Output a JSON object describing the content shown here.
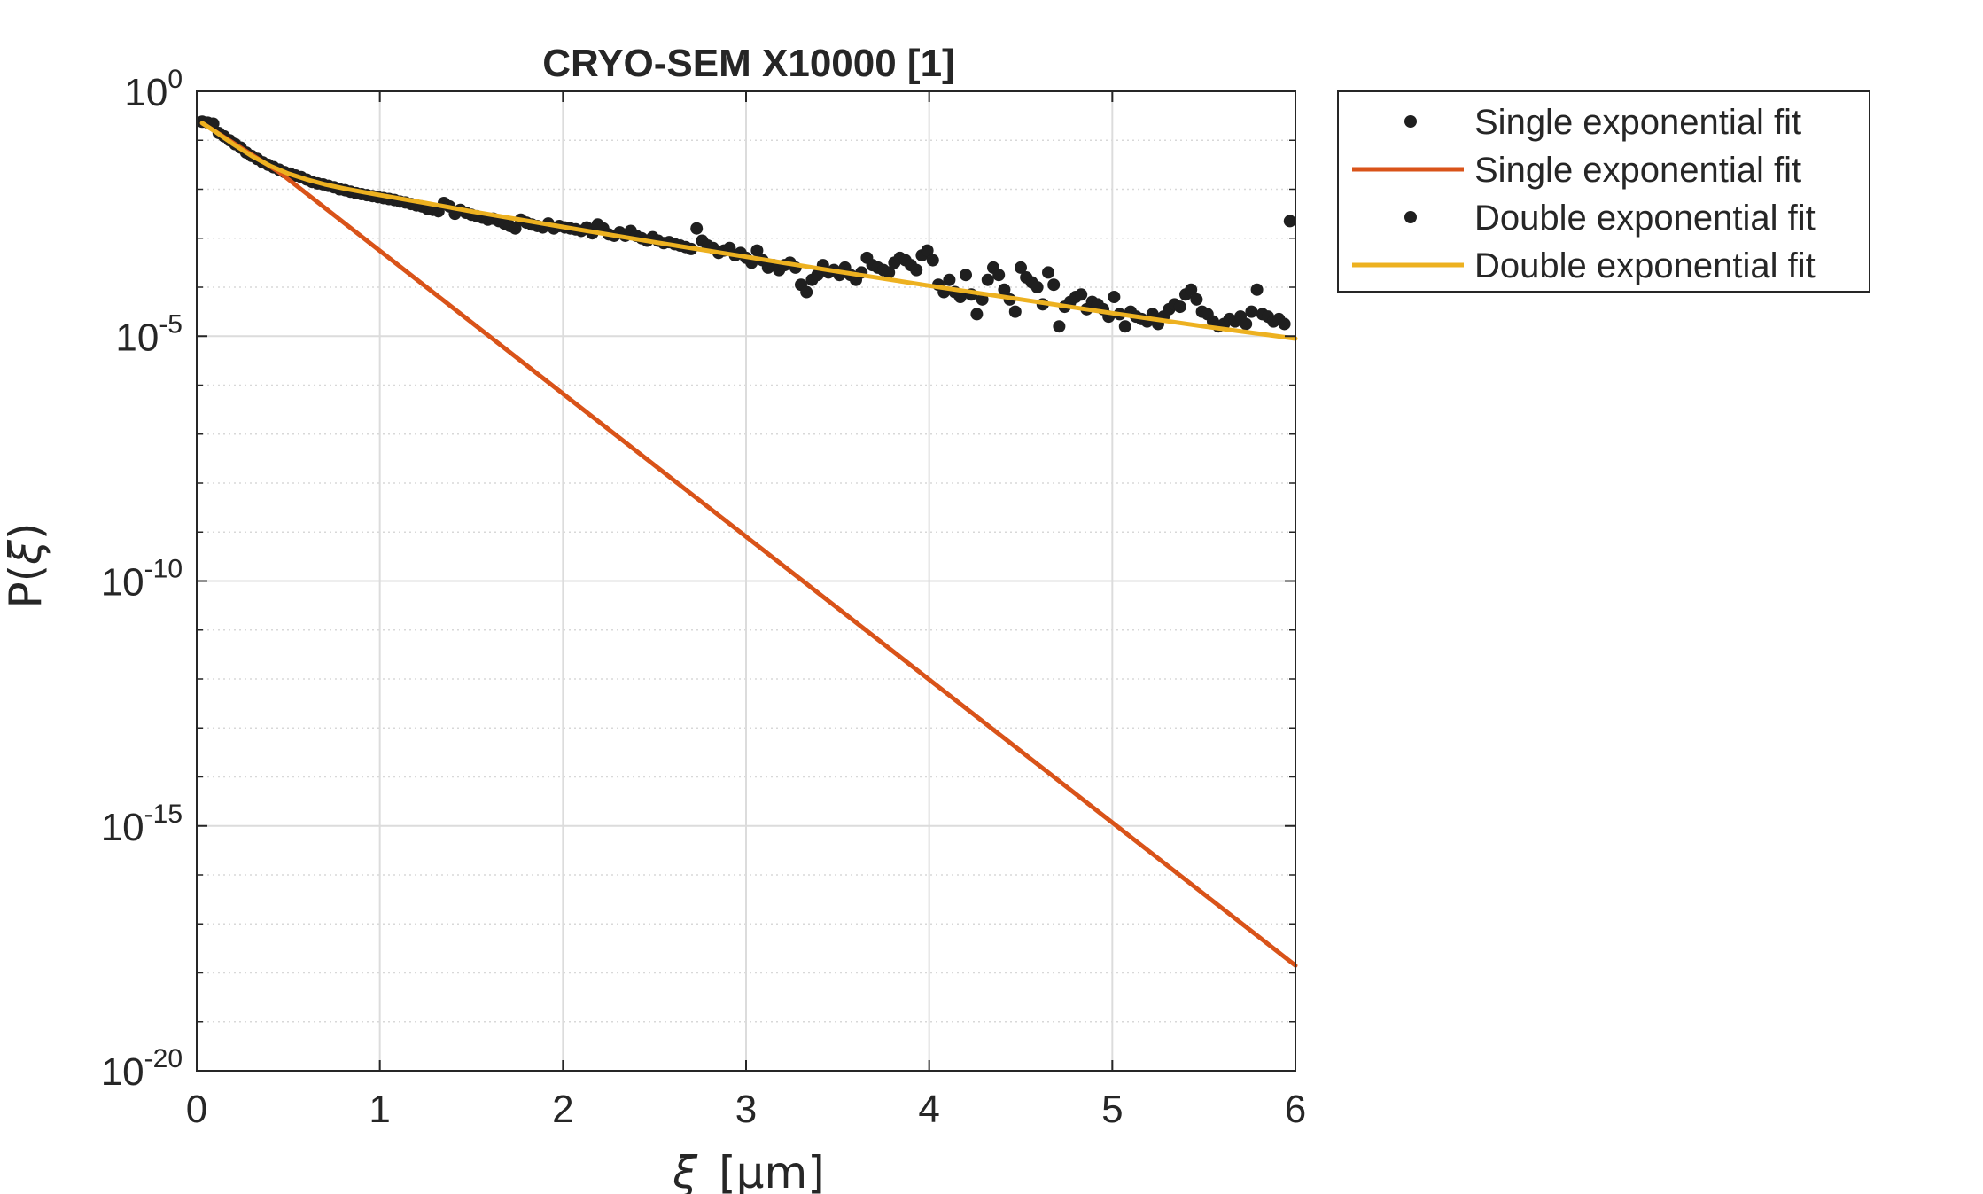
{
  "chart_data": {
    "type": "scatter",
    "title": "CRYO-SEM X10000 [1]",
    "xlabel_symbol": "ξ",
    "xlabel_unit": "[μm]",
    "ylabel_main": "P(",
    "ylabel_symbol": "ξ",
    "ylabel_close": ")",
    "xlim": [
      0,
      6
    ],
    "ylim_log10": [
      -20,
      0
    ],
    "yscale": "log",
    "grid": true,
    "legend_position": "outside-top-right",
    "x_ticks": [
      {
        "value": 0,
        "label": "0"
      },
      {
        "value": 1,
        "label": "1"
      },
      {
        "value": 2,
        "label": "2"
      },
      {
        "value": 3,
        "label": "3"
      },
      {
        "value": 4,
        "label": "4"
      },
      {
        "value": 5,
        "label": "5"
      },
      {
        "value": 6,
        "label": "6"
      }
    ],
    "y_ticks": [
      {
        "exp": 0,
        "base": "10",
        "power": "0"
      },
      {
        "exp": -5,
        "base": "10",
        "power": "-5"
      },
      {
        "exp": -10,
        "base": "10",
        "power": "-10"
      },
      {
        "exp": -15,
        "base": "10",
        "power": "-15"
      },
      {
        "exp": -20,
        "base": "10",
        "power": "-20"
      }
    ],
    "legend": [
      {
        "label": "Single exponential fit",
        "kind": "marker",
        "color": "#1f1f1f"
      },
      {
        "label": "Single exponential fit",
        "kind": "line",
        "color": "#d95319"
      },
      {
        "label": "Double exponential fit",
        "kind": "marker",
        "color": "#1f1f1f"
      },
      {
        "label": "Double exponential fit",
        "kind": "line",
        "color": "#edb120"
      }
    ],
    "series": [
      {
        "kind": "scatter",
        "color": "#1f1f1f",
        "points": [
          [
            0.03,
            -0.62
          ],
          [
            0.06,
            -0.64
          ],
          [
            0.09,
            -0.66
          ],
          [
            0.12,
            -0.85
          ],
          [
            0.15,
            -0.92
          ],
          [
            0.18,
            -1.0
          ],
          [
            0.21,
            -1.08
          ],
          [
            0.24,
            -1.15
          ],
          [
            0.27,
            -1.25
          ],
          [
            0.3,
            -1.32
          ],
          [
            0.33,
            -1.38
          ],
          [
            0.36,
            -1.45
          ],
          [
            0.39,
            -1.5
          ],
          [
            0.42,
            -1.55
          ],
          [
            0.45,
            -1.6
          ],
          [
            0.48,
            -1.65
          ],
          [
            0.51,
            -1.68
          ],
          [
            0.54,
            -1.72
          ],
          [
            0.57,
            -1.75
          ],
          [
            0.6,
            -1.8
          ],
          [
            0.63,
            -1.85
          ],
          [
            0.66,
            -1.88
          ],
          [
            0.69,
            -1.9
          ],
          [
            0.72,
            -1.93
          ],
          [
            0.75,
            -1.96
          ],
          [
            0.78,
            -2.0
          ],
          [
            0.81,
            -2.02
          ],
          [
            0.84,
            -2.05
          ],
          [
            0.87,
            -2.08
          ],
          [
            0.9,
            -2.1
          ],
          [
            0.93,
            -2.12
          ],
          [
            0.96,
            -2.14
          ],
          [
            0.99,
            -2.16
          ],
          [
            1.02,
            -2.18
          ],
          [
            1.05,
            -2.2
          ],
          [
            1.08,
            -2.22
          ],
          [
            1.11,
            -2.25
          ],
          [
            1.14,
            -2.27
          ],
          [
            1.17,
            -2.3
          ],
          [
            1.2,
            -2.33
          ],
          [
            1.23,
            -2.35
          ],
          [
            1.26,
            -2.4
          ],
          [
            1.29,
            -2.42
          ],
          [
            1.32,
            -2.45
          ],
          [
            1.35,
            -2.28
          ],
          [
            1.38,
            -2.35
          ],
          [
            1.41,
            -2.5
          ],
          [
            1.44,
            -2.42
          ],
          [
            1.47,
            -2.48
          ],
          [
            1.5,
            -2.52
          ],
          [
            1.53,
            -2.55
          ],
          [
            1.56,
            -2.58
          ],
          [
            1.59,
            -2.62
          ],
          [
            1.62,
            -2.6
          ],
          [
            1.65,
            -2.65
          ],
          [
            1.68,
            -2.7
          ],
          [
            1.71,
            -2.75
          ],
          [
            1.74,
            -2.8
          ],
          [
            1.77,
            -2.62
          ],
          [
            1.8,
            -2.68
          ],
          [
            1.83,
            -2.72
          ],
          [
            1.86,
            -2.75
          ],
          [
            1.89,
            -2.78
          ],
          [
            1.92,
            -2.7
          ],
          [
            1.95,
            -2.8
          ],
          [
            1.98,
            -2.75
          ],
          [
            2.01,
            -2.78
          ],
          [
            2.04,
            -2.8
          ],
          [
            2.07,
            -2.82
          ],
          [
            2.1,
            -2.85
          ],
          [
            2.13,
            -2.78
          ],
          [
            2.16,
            -2.9
          ],
          [
            2.19,
            -2.72
          ],
          [
            2.22,
            -2.8
          ],
          [
            2.25,
            -2.92
          ],
          [
            2.28,
            -2.95
          ],
          [
            2.31,
            -2.88
          ],
          [
            2.34,
            -2.95
          ],
          [
            2.37,
            -2.85
          ],
          [
            2.4,
            -2.95
          ],
          [
            2.43,
            -3.0
          ],
          [
            2.46,
            -3.05
          ],
          [
            2.49,
            -2.98
          ],
          [
            2.52,
            -3.05
          ],
          [
            2.55,
            -3.1
          ],
          [
            2.58,
            -3.08
          ],
          [
            2.61,
            -3.12
          ],
          [
            2.64,
            -3.15
          ],
          [
            2.67,
            -3.18
          ],
          [
            2.7,
            -3.22
          ],
          [
            2.73,
            -2.8
          ],
          [
            2.76,
            -3.05
          ],
          [
            2.79,
            -3.15
          ],
          [
            2.82,
            -3.2
          ],
          [
            2.85,
            -3.3
          ],
          [
            2.88,
            -3.25
          ],
          [
            2.91,
            -3.2
          ],
          [
            2.94,
            -3.35
          ],
          [
            2.97,
            -3.3
          ],
          [
            3.0,
            -3.4
          ],
          [
            3.03,
            -3.5
          ],
          [
            3.06,
            -3.25
          ],
          [
            3.09,
            -3.45
          ],
          [
            3.12,
            -3.6
          ],
          [
            3.15,
            -3.55
          ],
          [
            3.18,
            -3.65
          ],
          [
            3.21,
            -3.55
          ],
          [
            3.24,
            -3.5
          ],
          [
            3.27,
            -3.6
          ],
          [
            3.3,
            -3.95
          ],
          [
            3.33,
            -4.1
          ],
          [
            3.36,
            -3.85
          ],
          [
            3.39,
            -3.75
          ],
          [
            3.42,
            -3.55
          ],
          [
            3.45,
            -3.7
          ],
          [
            3.48,
            -3.65
          ],
          [
            3.51,
            -3.75
          ],
          [
            3.54,
            -3.6
          ],
          [
            3.57,
            -3.75
          ],
          [
            3.6,
            -3.85
          ],
          [
            3.63,
            -3.7
          ],
          [
            3.66,
            -3.4
          ],
          [
            3.69,
            -3.55
          ],
          [
            3.72,
            -3.6
          ],
          [
            3.75,
            -3.65
          ],
          [
            3.78,
            -3.7
          ],
          [
            3.81,
            -3.5
          ],
          [
            3.84,
            -3.4
          ],
          [
            3.87,
            -3.45
          ],
          [
            3.9,
            -3.55
          ],
          [
            3.93,
            -3.65
          ],
          [
            3.96,
            -3.35
          ],
          [
            3.99,
            -3.25
          ],
          [
            4.02,
            -3.45
          ],
          [
            4.05,
            -3.95
          ],
          [
            4.08,
            -4.1
          ],
          [
            4.11,
            -3.85
          ],
          [
            4.14,
            -4.1
          ],
          [
            4.17,
            -4.2
          ],
          [
            4.2,
            -3.75
          ],
          [
            4.23,
            -4.15
          ],
          [
            4.26,
            -4.55
          ],
          [
            4.29,
            -4.25
          ],
          [
            4.32,
            -3.85
          ],
          [
            4.35,
            -3.6
          ],
          [
            4.38,
            -3.75
          ],
          [
            4.41,
            -4.05
          ],
          [
            4.44,
            -4.25
          ],
          [
            4.47,
            -4.5
          ],
          [
            4.5,
            -3.6
          ],
          [
            4.53,
            -3.8
          ],
          [
            4.56,
            -3.9
          ],
          [
            4.59,
            -4.0
          ],
          [
            4.62,
            -4.35
          ],
          [
            4.65,
            -3.7
          ],
          [
            4.68,
            -3.95
          ],
          [
            4.71,
            -4.8
          ],
          [
            4.74,
            -4.4
          ],
          [
            4.77,
            -4.3
          ],
          [
            4.8,
            -4.2
          ],
          [
            4.83,
            -4.15
          ],
          [
            4.86,
            -4.45
          ],
          [
            4.89,
            -4.3
          ],
          [
            4.92,
            -4.35
          ],
          [
            4.95,
            -4.45
          ],
          [
            4.98,
            -4.6
          ],
          [
            5.01,
            -4.2
          ],
          [
            5.04,
            -4.55
          ],
          [
            5.07,
            -4.8
          ],
          [
            5.1,
            -4.5
          ],
          [
            5.13,
            -4.6
          ],
          [
            5.16,
            -4.65
          ],
          [
            5.19,
            -4.7
          ],
          [
            5.22,
            -4.55
          ],
          [
            5.25,
            -4.75
          ],
          [
            5.28,
            -4.6
          ],
          [
            5.31,
            -4.45
          ],
          [
            5.34,
            -4.35
          ],
          [
            5.37,
            -4.4
          ],
          [
            5.4,
            -4.15
          ],
          [
            5.43,
            -4.05
          ],
          [
            5.46,
            -4.25
          ],
          [
            5.49,
            -4.5
          ],
          [
            5.52,
            -4.55
          ],
          [
            5.55,
            -4.7
          ],
          [
            5.58,
            -4.8
          ],
          [
            5.61,
            -4.75
          ],
          [
            5.64,
            -4.65
          ],
          [
            5.67,
            -4.7
          ],
          [
            5.7,
            -4.6
          ],
          [
            5.73,
            -4.75
          ],
          [
            5.76,
            -4.5
          ],
          [
            5.79,
            -4.05
          ],
          [
            5.82,
            -4.55
          ],
          [
            5.85,
            -4.6
          ],
          [
            5.88,
            -4.7
          ],
          [
            5.91,
            -4.65
          ],
          [
            5.94,
            -4.75
          ],
          [
            5.97,
            -2.65
          ]
        ]
      },
      {
        "kind": "line",
        "color": "#d95319",
        "points": [
          [
            0.03,
            -0.65
          ],
          [
            0.45,
            -1.65
          ],
          [
            6.0,
            -17.85
          ]
        ]
      },
      {
        "kind": "line",
        "color": "#edb120",
        "points": [
          [
            0.03,
            -0.65
          ],
          [
            0.1,
            -0.82
          ],
          [
            0.2,
            -1.08
          ],
          [
            0.3,
            -1.32
          ],
          [
            0.4,
            -1.52
          ],
          [
            0.5,
            -1.68
          ],
          [
            0.6,
            -1.8
          ],
          [
            0.7,
            -1.9
          ],
          [
            0.8,
            -1.98
          ],
          [
            0.9,
            -2.05
          ],
          [
            1.0,
            -2.12
          ],
          [
            1.25,
            -2.28
          ],
          [
            1.5,
            -2.45
          ],
          [
            2.0,
            -2.77
          ],
          [
            2.5,
            -3.08
          ],
          [
            3.0,
            -3.38
          ],
          [
            3.5,
            -3.68
          ],
          [
            4.0,
            -3.97
          ],
          [
            4.5,
            -4.25
          ],
          [
            5.0,
            -4.53
          ],
          [
            5.5,
            -4.8
          ],
          [
            6.0,
            -5.05
          ]
        ]
      }
    ]
  }
}
